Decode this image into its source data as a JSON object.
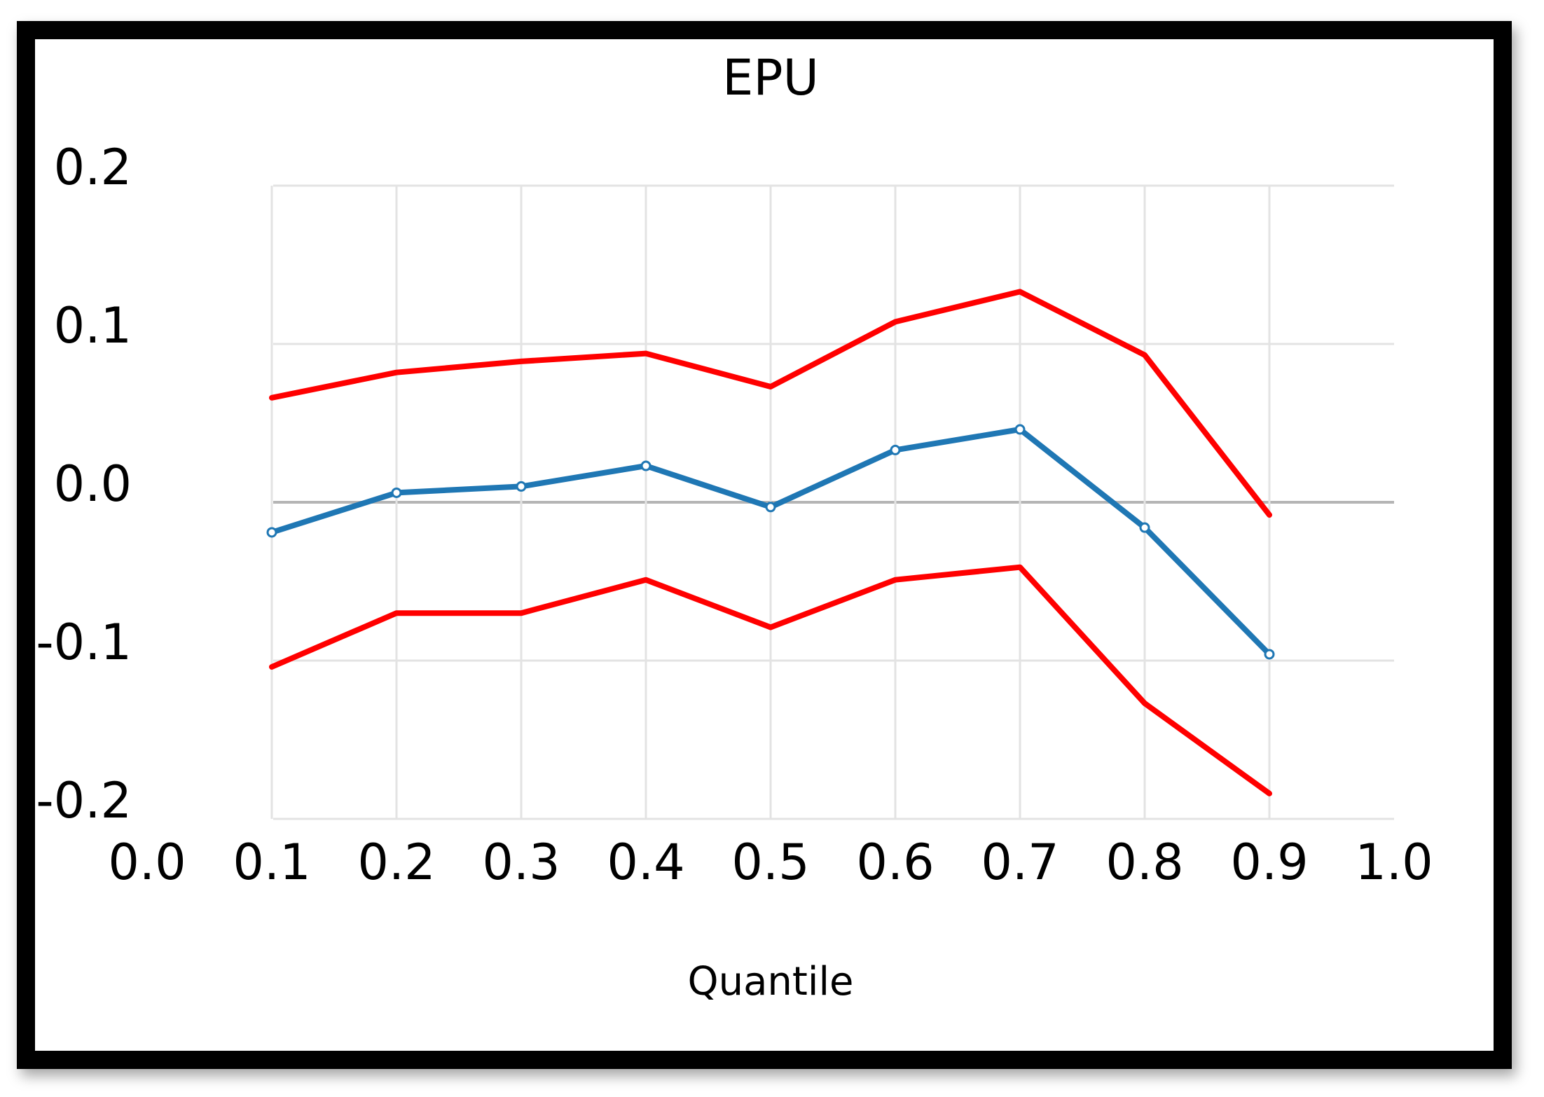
{
  "chart_data": {
    "type": "line",
    "title": "EPU",
    "xlabel": "Quantile",
    "ylabel": "",
    "xlim": [
      0.0,
      1.0
    ],
    "ylim": [
      -0.2,
      0.2
    ],
    "x_ticks": [
      "0.0",
      "0.1",
      "0.2",
      "0.3",
      "0.4",
      "0.5",
      "0.6",
      "0.7",
      "0.8",
      "0.9",
      "1.0"
    ],
    "y_ticks": [
      "0.2",
      "0.1",
      "0.0",
      "-0.1",
      "-0.2"
    ],
    "grid": true,
    "legend": "none",
    "x": [
      0.1,
      0.2,
      0.3,
      0.4,
      0.5,
      0.6,
      0.7,
      0.8,
      0.9
    ],
    "series": [
      {
        "color": "#ff0000",
        "values": [
          0.066,
          0.082,
          0.089,
          0.094,
          0.073,
          0.114,
          0.133,
          0.093,
          -0.008
        ]
      },
      {
        "color": "#1f77b4",
        "values": [
          -0.019,
          0.006,
          0.01,
          0.023,
          -0.003,
          0.033,
          0.046,
          -0.016,
          -0.096
        ]
      },
      {
        "color": "#ff0000",
        "values": [
          -0.104,
          -0.07,
          -0.07,
          -0.049,
          -0.079,
          -0.049,
          -0.041,
          -0.127,
          -0.184
        ]
      }
    ]
  }
}
